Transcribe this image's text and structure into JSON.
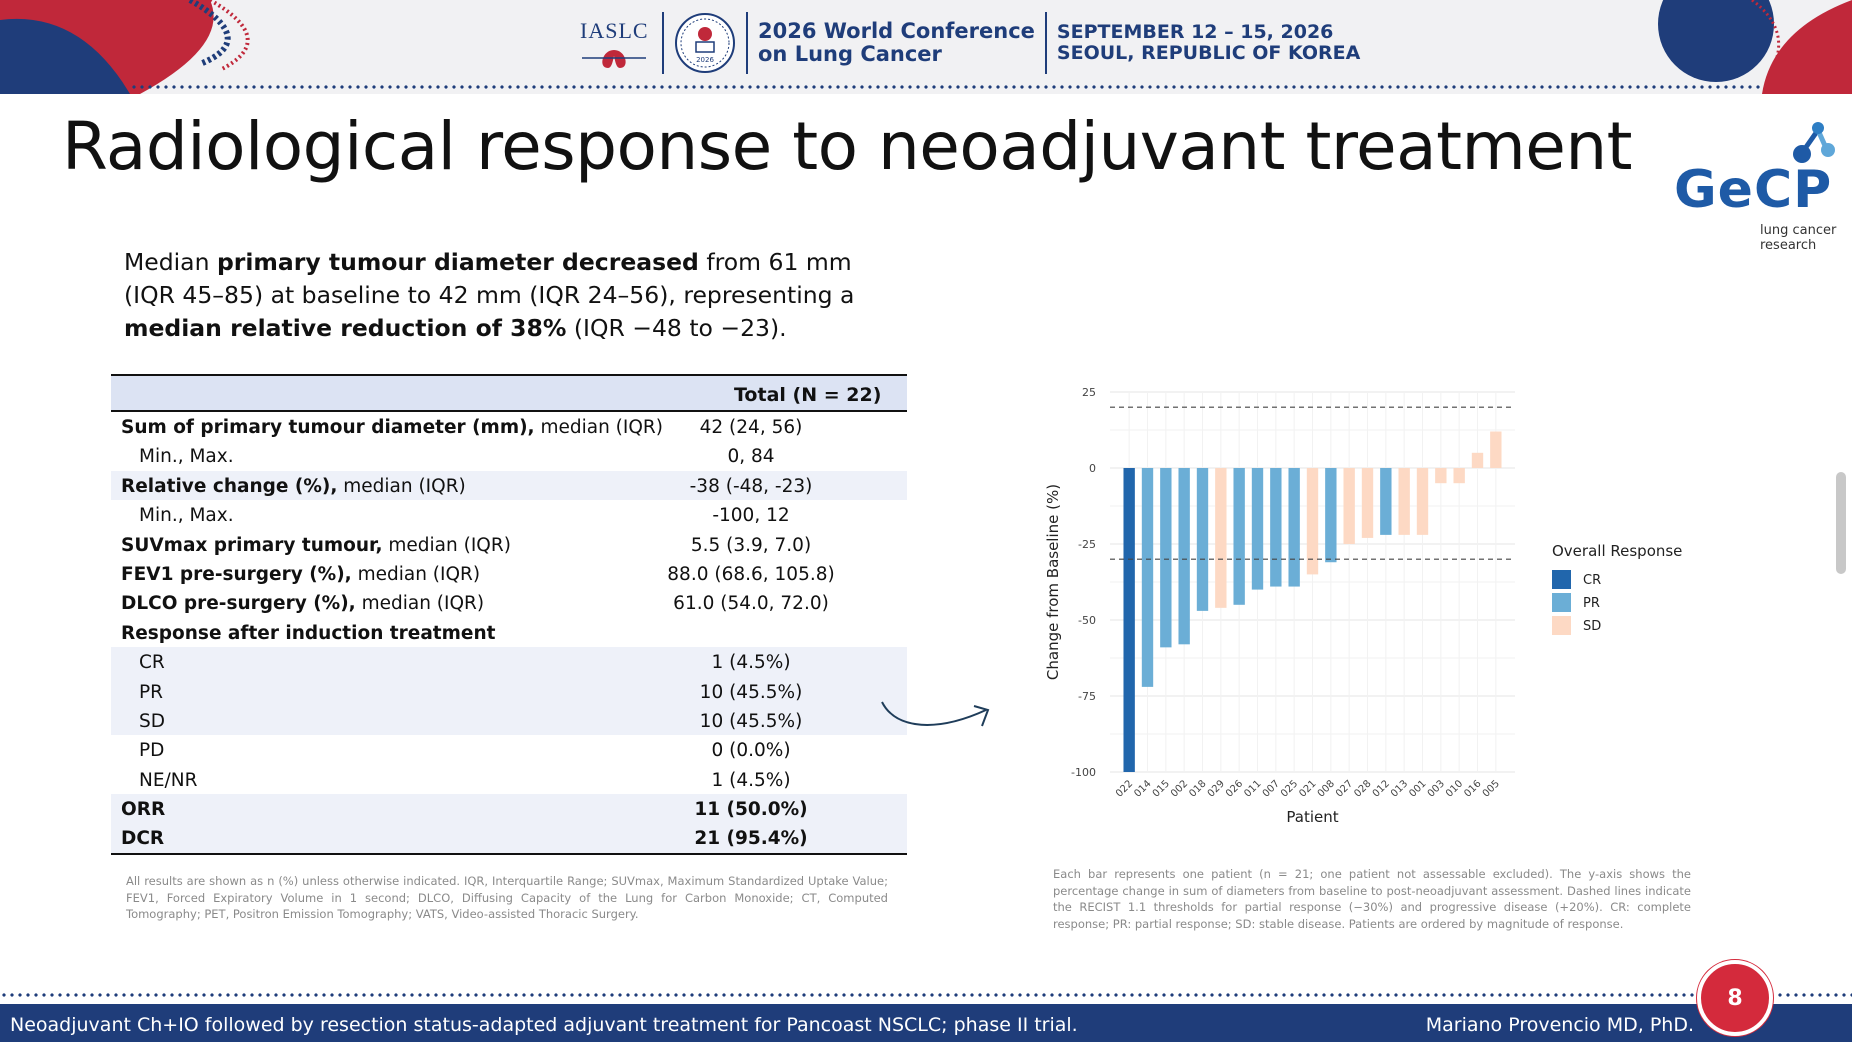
{
  "header": {
    "org": "IASLC",
    "seal_year": "2026",
    "conference_line1": "2026 World Conference",
    "conference_line2": "on Lung Cancer",
    "date_line1": "SEPTEMBER 12 – 15, 2026",
    "date_line2": "SEOUL, REPUBLIC OF KOREA"
  },
  "title": "Radiological response to neoadjuvant treatment",
  "logo": {
    "word": "GeCP",
    "sub1": "lung cancer",
    "sub2": "research",
    "color": "#1e5aa6"
  },
  "intro": {
    "p1": "Median ",
    "b1": "primary tumour diameter decreased",
    "p2": " from 61 mm (IQR 45–85) at baseline to 42 mm (IQR 24–56), representing a ",
    "b2": "median relative reduction of 38%",
    "p3": " (IQR −48 to −23)."
  },
  "table": {
    "column_header": "Total (N = 22)",
    "rows": [
      {
        "bold": "Sum of primary tumour diameter (mm),",
        "rest": " median (IQR)",
        "value": "42 (24, 56)",
        "indent": false,
        "shade": false,
        "bold_value": false
      },
      {
        "bold": "",
        "rest": "Min., Max.",
        "value": "0, 84",
        "indent": true,
        "shade": false,
        "bold_value": false
      },
      {
        "bold": "Relative change (%),",
        "rest": " median (IQR)",
        "value": "-38 (-48, -23)",
        "indent": false,
        "shade": true,
        "bold_value": false
      },
      {
        "bold": "",
        "rest": "Min., Max.",
        "value": "-100, 12",
        "indent": true,
        "shade": false,
        "bold_value": false
      },
      {
        "bold": "SUVmax primary tumour,",
        "rest": " median (IQR)",
        "value": "5.5 (3.9, 7.0)",
        "indent": false,
        "shade": false,
        "bold_value": false
      },
      {
        "bold": "FEV1 pre-surgery (%),",
        "rest": " median (IQR)",
        "value": "88.0 (68.6, 105.8)",
        "indent": false,
        "shade": false,
        "bold_value": false
      },
      {
        "bold": "DLCO pre-surgery (%),",
        "rest": " median (IQR)",
        "value": "61.0 (54.0, 72.0)",
        "indent": false,
        "shade": false,
        "bold_value": false
      },
      {
        "bold": "Response after induction treatment",
        "rest": "",
        "value": "",
        "indent": false,
        "shade": false,
        "bold_value": false
      },
      {
        "bold": "",
        "rest": "CR",
        "value": "1 (4.5%)",
        "indent": true,
        "shade": true,
        "bold_value": false
      },
      {
        "bold": "",
        "rest": "PR",
        "value": "10 (45.5%)",
        "indent": true,
        "shade": true,
        "bold_value": false
      },
      {
        "bold": "",
        "rest": "SD",
        "value": "10 (45.5%)",
        "indent": true,
        "shade": true,
        "bold_value": false
      },
      {
        "bold": "",
        "rest": "PD",
        "value": "0 (0.0%)",
        "indent": true,
        "shade": false,
        "bold_value": false
      },
      {
        "bold": "",
        "rest": "NE/NR",
        "value": "1 (4.5%)",
        "indent": true,
        "shade": false,
        "bold_value": false
      },
      {
        "bold": "ORR",
        "rest": "",
        "value": "11 (50.0%)",
        "indent": false,
        "shade": true,
        "bold_value": true
      },
      {
        "bold": "DCR",
        "rest": "",
        "value": "21 (95.4%)",
        "indent": false,
        "shade": true,
        "bold_value": true
      }
    ]
  },
  "footnote": "All results are shown as n (%) unless otherwise indicated. IQR, Interquartile Range; SUVmax, Maximum Standardized Uptake Value; FEV1, Forced Expiratory Volume in 1 second; DLCO, Diffusing Capacity of the Lung for Carbon Monoxide; CT, Computed Tomography; PET, Positron Emission Tomography; VATS, Video-assisted Thoracic Surgery.",
  "caption": "Each bar represents one patient (n = 21; one patient not assessable excluded). The y-axis shows the percentage change in sum of diameters from baseline to post-neoadjuvant assessment. Dashed lines indicate the RECIST 1.1 thresholds for partial response (−30%) and progressive disease (+20%). CR: complete response; PR: partial response; SD: stable disease. Patients are ordered by magnitude of response.",
  "chart_data": {
    "type": "bar",
    "xlabel": "Patient",
    "ylabel": "Change from Baseline (%)",
    "ylim": [
      -100,
      25
    ],
    "yticks": [
      25,
      0,
      -25,
      -50,
      -75,
      -100
    ],
    "reference_lines": [
      20,
      -30
    ],
    "legend_title": "Overall Response",
    "legend_position": "right",
    "colors": {
      "CR": "#2166ac",
      "PR": "#6baed6",
      "SD": "#fdd9c4"
    },
    "categories": [
      "022",
      "014",
      "015",
      "002",
      "018",
      "029",
      "026",
      "011",
      "007",
      "025",
      "021",
      "008",
      "027",
      "028",
      "012",
      "013",
      "001",
      "003",
      "010",
      "016",
      "005"
    ],
    "values": [
      -100,
      -72,
      -59,
      -58,
      -47,
      -46,
      -45,
      -40,
      -39,
      -39,
      -35,
      -31,
      -25,
      -23,
      -22,
      -22,
      -22,
      -5,
      -5,
      5,
      12
    ],
    "response": [
      "CR",
      "PR",
      "PR",
      "PR",
      "PR",
      "SD",
      "PR",
      "PR",
      "PR",
      "PR",
      "SD",
      "PR",
      "SD",
      "SD",
      "PR",
      "SD",
      "SD",
      "SD",
      "SD",
      "SD",
      "SD"
    ],
    "legend": [
      "CR",
      "PR",
      "SD"
    ]
  },
  "footer": {
    "trial": "Neoadjuvant Ch+IO followed by resection status-adapted adjuvant treatment for Pancoast NSCLC; phase II trial.",
    "author": "Mariano Provencio MD, PhD.",
    "page": "8"
  }
}
